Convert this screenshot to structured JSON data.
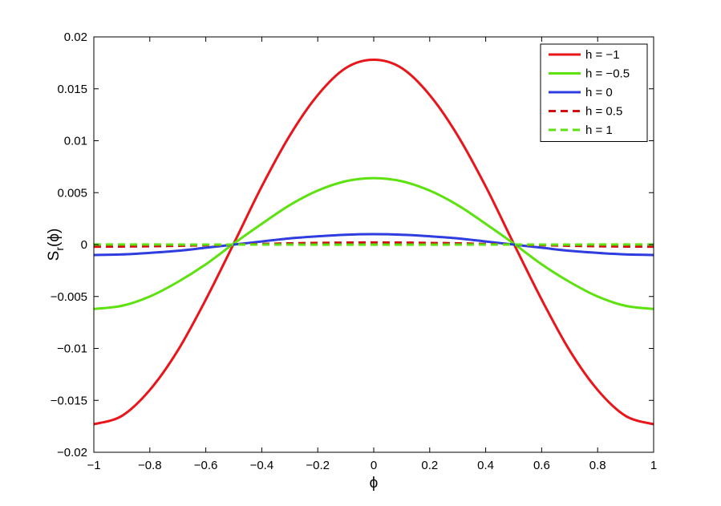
{
  "chart_data": {
    "type": "line",
    "xlabel": "ϕ",
    "ylabel": "S_r(ϕ)",
    "ylabel_main": "S",
    "ylabel_sub": "r",
    "ylabel_arg": "(ϕ)",
    "xlim": [
      -1,
      1
    ],
    "ylim": [
      -0.02,
      0.02
    ],
    "x_ticks": [
      -1,
      -0.8,
      -0.6,
      -0.4,
      -0.2,
      0,
      0.2,
      0.4,
      0.6,
      0.8,
      1
    ],
    "x_tick_labels": [
      "−1",
      "−0.8",
      "−0.6",
      "−0.4",
      "−0.2",
      "0",
      "0.2",
      "0.4",
      "0.6",
      "0.8",
      "1"
    ],
    "y_ticks": [
      -0.02,
      -0.015,
      -0.01,
      -0.005,
      0,
      0.005,
      0.01,
      0.015,
      0.02
    ],
    "y_tick_labels": [
      "−0.02",
      "−0.015",
      "−0.01",
      "−0.005",
      "0",
      "0.005",
      "0.01",
      "0.015",
      "0.02"
    ],
    "grid": false,
    "legend_position": "top-right",
    "x": [
      -1,
      -0.9,
      -0.8,
      -0.7,
      -0.6,
      -0.5,
      -0.4,
      -0.3,
      -0.2,
      -0.1,
      0,
      0.1,
      0.2,
      0.3,
      0.4,
      0.5,
      0.6,
      0.7,
      0.8,
      0.9,
      1
    ],
    "series": [
      {
        "name": "h = −1",
        "color": "#e8151a",
        "dash": "solid",
        "values": [
          -0.0173,
          -0.0165,
          -0.014,
          -0.0102,
          -0.0053,
          0.0001,
          0.0056,
          0.0105,
          0.0144,
          0.017,
          0.0178,
          0.017,
          0.0144,
          0.0105,
          0.0056,
          0.0001,
          -0.0053,
          -0.0102,
          -0.014,
          -0.0165,
          -0.0173
        ]
      },
      {
        "name": "h = −0.5",
        "color": "#5ce20e",
        "dash": "solid",
        "values": [
          -0.0062,
          -0.0059,
          -0.005,
          -0.0036,
          -0.0019,
          0.0001,
          0.002,
          0.0038,
          0.0052,
          0.0061,
          0.0064,
          0.0061,
          0.0052,
          0.0038,
          0.002,
          0.0001,
          -0.0019,
          -0.0036,
          -0.005,
          -0.0059,
          -0.0062
        ]
      },
      {
        "name": "h = 0",
        "color": "#2f3cde",
        "dash": "solid",
        "values": [
          -0.001,
          -0.00095,
          -0.0008,
          -0.0006,
          -0.0003,
          0.0,
          0.0003,
          0.0006,
          0.0008,
          0.00095,
          0.001,
          0.00095,
          0.0008,
          0.0006,
          0.0003,
          0.0,
          -0.0003,
          -0.0006,
          -0.0008,
          -0.00095,
          -0.001
        ]
      },
      {
        "name": "h = 0.5",
        "color": "#d40f12",
        "dash": "dashed",
        "values": [
          -0.0002,
          -0.00019,
          -0.00016,
          -0.00012,
          -6e-05,
          0.0,
          6e-05,
          0.00012,
          0.00016,
          0.00019,
          0.0002,
          0.00019,
          0.00016,
          0.00012,
          6e-05,
          0.0,
          -6e-05,
          -0.00012,
          -0.00016,
          -0.00019,
          -0.0002
        ]
      },
      {
        "name": "h = 1",
        "color": "#5ce20e",
        "dash": "dashed",
        "values": [
          1e-05,
          1e-05,
          1e-05,
          0.0,
          0.0,
          0.0,
          0.0,
          0.0,
          -1e-05,
          -1e-05,
          -1e-05,
          -1e-05,
          -1e-05,
          0.0,
          0.0,
          0.0,
          0.0,
          0.0,
          1e-05,
          1e-05,
          1e-05
        ]
      }
    ]
  }
}
